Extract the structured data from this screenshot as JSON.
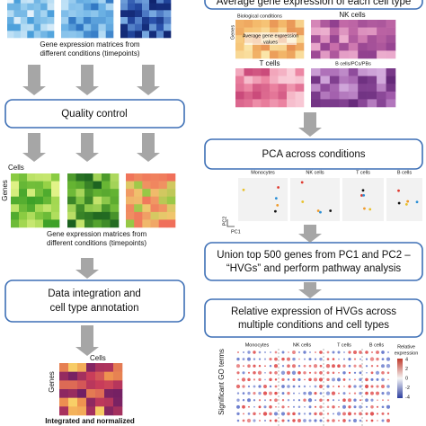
{
  "left": {
    "matrices_caption": [
      "Gene expression matrices from",
      "different conditions (timepoints)"
    ],
    "quality_control": "Quality control",
    "qc_cells": "Cells",
    "qc_genes": "Genes",
    "matrices_caption_2": [
      "Gene expression matrices from",
      "different conditions (timepoints)"
    ],
    "integration": [
      "Data integration and",
      "cell type annotation"
    ],
    "integrated_cells": "Cells",
    "integrated_genes": "Genes",
    "integrated_caption": "Integrated and normalized"
  },
  "right": {
    "average_title": "Average gene expression of each cell type",
    "average_genes": "Genes",
    "average_panels": [
      "Biological conditions",
      "NK cells",
      "T cells",
      "B cells/PCs/PBs"
    ],
    "average_values": [
      "Average gene expression",
      "values"
    ],
    "pca_title": "PCA across conditions",
    "pca_panels": [
      "Monocytes",
      "NK cells",
      "T cells",
      "B cells"
    ],
    "pca_x": "PC1",
    "pca_y": "PC2",
    "union": [
      "Union top 500 genes from PC1 and PC2 –",
      "“HVGs” and perform pathway analysis"
    ],
    "relative": [
      "Relative expression of HVGs across",
      "multiple conditions and cell types"
    ],
    "dot_panels": [
      "Monocytes",
      "NK cells",
      "T cells",
      "B cells"
    ],
    "dot_y": "Significant GO terms",
    "legend_title": [
      "Relative",
      "expression"
    ],
    "legend_ticks": [
      "4",
      "2",
      "0",
      "-2",
      "-4"
    ]
  }
}
